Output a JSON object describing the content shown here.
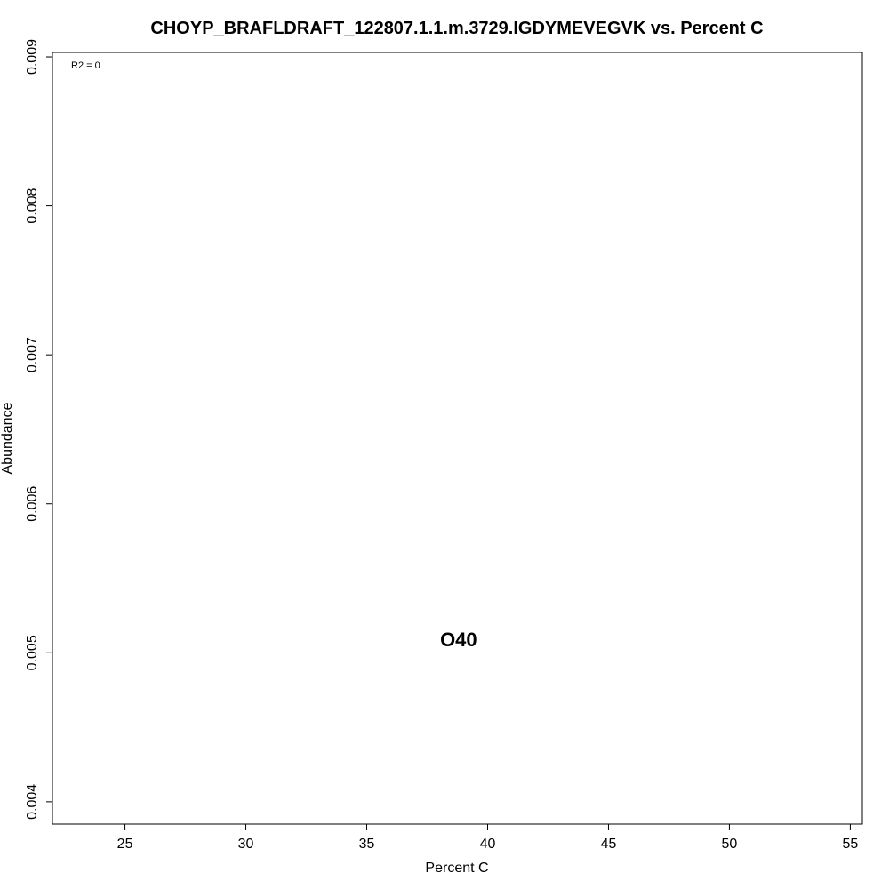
{
  "chart_data": {
    "type": "scatter",
    "title": "CHOYP_BRAFLDRAFT_122807.1.1.m.3729.IGDYMEVEGVK vs. Percent C",
    "xlabel": "Percent C",
    "ylabel": "Abundance",
    "xlim": [
      22.0,
      55.5
    ],
    "ylim": [
      0.00385,
      0.00903
    ],
    "x_ticks": [
      25,
      30,
      35,
      40,
      45,
      50,
      55
    ],
    "y_ticks": [
      0.004,
      0.005,
      0.006,
      0.007,
      0.008,
      0.009
    ],
    "y_tick_labels": [
      "0.004",
      "0.005",
      "0.006",
      "0.007",
      "0.008",
      "0.009"
    ],
    "grid": false,
    "annotation": "R2 = 0",
    "points": [
      {
        "label": "O40",
        "x": 38.8,
        "y": 0.00509
      }
    ]
  }
}
